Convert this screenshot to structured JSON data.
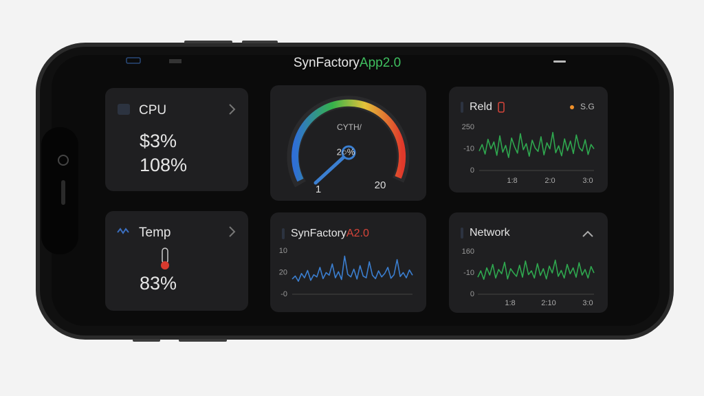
{
  "header": {
    "title": "SynFactory",
    "title_accent": "App2.0"
  },
  "cards": {
    "cpu": {
      "label": "CPU",
      "value_1": "$3%",
      "value_2": "108%"
    },
    "temp": {
      "label": "Temp",
      "value": "83%"
    },
    "gauge": {
      "label": "CYTH/",
      "reading": "2○%",
      "min_label": "1",
      "max_label": "20"
    }
  },
  "charts": [
    {
      "title": "Reld",
      "legend": "S.G",
      "color": "#2fa84f",
      "ylim": [
        0,
        100
      ],
      "y_labels": [
        "250",
        "-10",
        "0"
      ],
      "x_labels": [
        "1:8",
        "2:0",
        "3:0"
      ],
      "values": [
        45,
        60,
        38,
        72,
        50,
        66,
        35,
        80,
        42,
        58,
        30,
        75,
        55,
        40,
        85,
        48,
        62,
        33,
        70,
        52,
        44,
        78,
        36,
        64,
        50,
        88,
        41,
        57,
        34,
        73,
        46,
        68,
        39,
        82,
        53,
        45,
        71,
        37,
        60,
        50
      ]
    },
    {
      "title": "SynFactory",
      "title_accent": "A2.0",
      "color": "#3b7fd1",
      "ylim": [
        0,
        100
      ],
      "y_labels": [
        "10",
        "20",
        "-0"
      ],
      "values": [
        35,
        42,
        30,
        48,
        38,
        55,
        32,
        45,
        40,
        62,
        36,
        50,
        44,
        70,
        38,
        52,
        34,
        88,
        46,
        40,
        58,
        35,
        66,
        42,
        38,
        75,
        44,
        36,
        54,
        40,
        48,
        62,
        37,
        45,
        80,
        41,
        50,
        38,
        56,
        44
      ]
    },
    {
      "title": "Network",
      "color": "#2fa84f",
      "ylim": [
        0,
        100
      ],
      "y_labels": [
        "160",
        "-10",
        "0"
      ],
      "x_labels": [
        "1:8",
        "2:10",
        "3:0"
      ],
      "values": [
        40,
        55,
        35,
        62,
        45,
        70,
        38,
        58,
        48,
        75,
        36,
        60,
        50,
        42,
        68,
        40,
        78,
        46,
        55,
        38,
        72,
        44,
        60,
        36,
        66,
        50,
        80,
        42,
        56,
        38,
        70,
        48,
        62,
        40,
        74,
        45,
        58,
        38,
        65,
        50
      ]
    }
  ]
}
